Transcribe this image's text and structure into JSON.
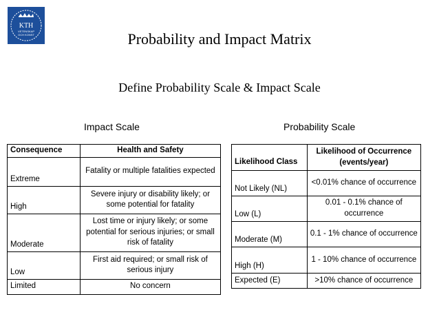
{
  "logo": {
    "text_line1": "KTH",
    "text_line2": "VETENSKAP",
    "text_line3": "OCH KONST",
    "color": "#1d4f9b"
  },
  "title": "Probability and Impact Matrix",
  "subtitle": "Define Probability Scale & Impact Scale",
  "impact": {
    "caption": "Impact Scale",
    "headers": [
      "Consequence",
      "Health and Safety"
    ],
    "rows": [
      {
        "level": "Extreme",
        "description": "Fatality or multiple fatalities expected"
      },
      {
        "level": "High",
        "description": "Severe injury or disability likely; or some potential for fatality"
      },
      {
        "level": "Moderate",
        "description": "Lost time or injury likely; or some potential for serious injuries; or small risk of fatality"
      },
      {
        "level": "Low",
        "description": "First aid required; or small risk of serious injury"
      },
      {
        "level": "Limited",
        "description": "No concern"
      }
    ]
  },
  "probability": {
    "caption": "Probability Scale",
    "headers": [
      "Likelihood Class",
      "Likelihood of Occurrence (events/year)"
    ],
    "rows": [
      {
        "level": "Not Likely (NL)",
        "description": "<0.01% chance of occurrence"
      },
      {
        "level": "Low (L)",
        "description": "0.01 - 0.1% chance of occurrence"
      },
      {
        "level": "Moderate (M)",
        "description": "0.1 - 1% chance of occurrence"
      },
      {
        "level": "High (H)",
        "description": "1 - 10% chance of occurrence"
      },
      {
        "level": "Expected (E)",
        "description": ">10% chance of occurrence"
      }
    ]
  }
}
